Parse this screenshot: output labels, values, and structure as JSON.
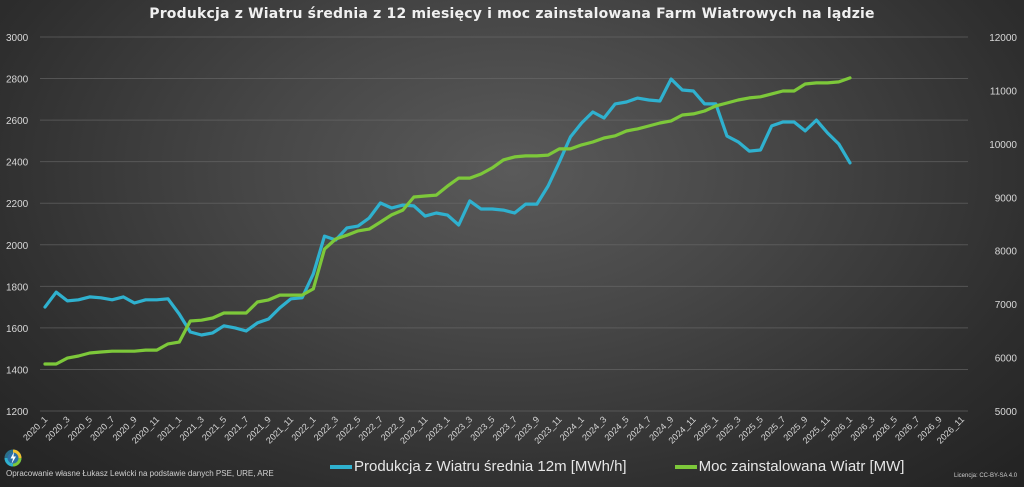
{
  "title": "Produkcja z Wiatru średnia z 12 miesięcy i moc zainstalowana Farm Wiatrowych na lądzie",
  "footer": {
    "source": "Opracowanie własne Łukasz Lewicki na podstawie danych PSE, URE, ARE",
    "license": "Licencja: CC-BY-SA 4.0",
    "logo_icon": "lightning-bolt-logo-icon"
  },
  "legend": [
    {
      "label": "Produkcja z Wiatru średnia 12m [MWh/h]",
      "color": "#2fb1cf"
    },
    {
      "label": "Moc zainstalowana Wiatr [MW]",
      "color": "#7dc83a"
    }
  ],
  "chart_data": {
    "type": "line",
    "title": "Produkcja z Wiatru średnia z 12 miesięcy i moc zainstalowana Farm Wiatrowych na lądzie",
    "xlabel": "",
    "ylabel": "",
    "y_left": {
      "min": 1200,
      "max": 3000,
      "ticks": [
        1200,
        1400,
        1600,
        1800,
        2000,
        2200,
        2400,
        2600,
        2800,
        3000
      ]
    },
    "y_right": {
      "min": 5000,
      "max": 12000,
      "ticks": [
        5000,
        6000,
        7000,
        8000,
        9000,
        10000,
        11000,
        12000
      ]
    },
    "grid": true,
    "legend_position": "bottom",
    "x_tick_labels": [
      "2020_1",
      "2020_3",
      "2020_5",
      "2020_7",
      "2020_9",
      "2020_11",
      "2021_1",
      "2021_3",
      "2021_5",
      "2021_7",
      "2021_9",
      "2021_11",
      "2022_1",
      "2022_3",
      "2022_5",
      "2022_7",
      "2022_9",
      "2022_11",
      "2023_1",
      "2023_3",
      "2023_5",
      "2023_7",
      "2023_9",
      "2023_11",
      "2024_1",
      "2024_3",
      "2024_5",
      "2024_7",
      "2024_9",
      "2024_11",
      "2025_1",
      "2025_3",
      "2025_5",
      "2025_7",
      "2025_9",
      "2025_11",
      "2026_1",
      "2026_3",
      "2026_5",
      "2026_7",
      "2026_9",
      "2026_11"
    ],
    "x_first": "2020_1",
    "n_categories": 83,
    "series": [
      {
        "name": "Produkcja z Wiatru średnia 12m [MWh/h]",
        "axis": "left",
        "color": "#2fb1cf",
        "values": [
          1700,
          1772,
          1730,
          1735,
          1749,
          1745,
          1735,
          1749,
          1720,
          1735,
          1735,
          1740,
          1667,
          1580,
          1566,
          1576,
          1610,
          1600,
          1585,
          1624,
          1643,
          1696,
          1740,
          1745,
          1860,
          2042,
          2023,
          2081,
          2090,
          2129,
          2201,
          2177,
          2191,
          2187,
          2138,
          2153,
          2143,
          2095,
          2211,
          2172,
          2172,
          2167,
          2153,
          2196,
          2196,
          2283,
          2398,
          2519,
          2586,
          2639,
          2610,
          2678,
          2687,
          2706,
          2697,
          2692,
          2798,
          2745,
          2740,
          2678,
          2678,
          2523,
          2495,
          2451,
          2456,
          2572,
          2591,
          2591,
          2548,
          2600,
          2538,
          2485,
          2394
        ]
      },
      {
        "name": "Moc zainstalowana Wiatr [MW]",
        "axis": "right",
        "color": "#7dc83a",
        "values": [
          5880,
          5880,
          5990,
          6030,
          6085,
          6105,
          6120,
          6120,
          6120,
          6140,
          6140,
          6255,
          6290,
          6685,
          6700,
          6740,
          6835,
          6835,
          6835,
          7040,
          7080,
          7170,
          7170,
          7170,
          7285,
          8030,
          8220,
          8290,
          8370,
          8405,
          8535,
          8670,
          8760,
          9005,
          9025,
          9040,
          9210,
          9360,
          9360,
          9435,
          9550,
          9700,
          9755,
          9775,
          9775,
          9790,
          9905,
          9905,
          9980,
          10035,
          10110,
          10150,
          10240,
          10280,
          10335,
          10390,
          10430,
          10540,
          10560,
          10615,
          10710,
          10765,
          10820,
          10860,
          10880,
          10935,
          10990,
          10990,
          11120,
          11140,
          11140,
          11160,
          11235
        ]
      }
    ]
  }
}
